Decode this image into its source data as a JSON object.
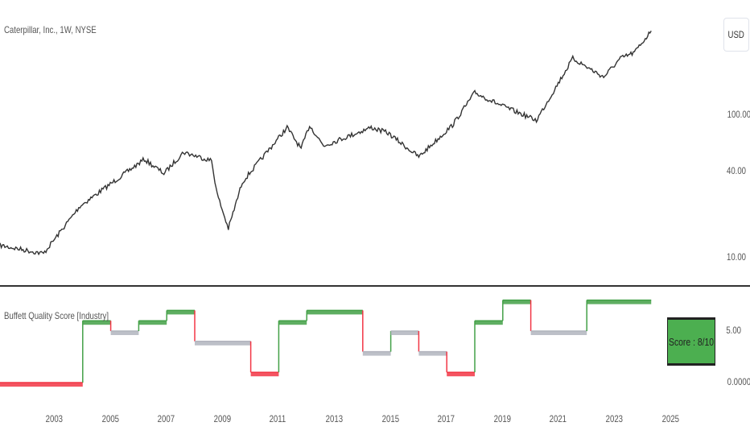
{
  "header": {
    "symbol_title": "Caterpillar, Inc., 1W, NYSE",
    "currency_button": "USD"
  },
  "indicator": {
    "title": "Buffett Quality Score [Industry]",
    "score_label": "Score :  8/10"
  },
  "colors": {
    "price": "#333333",
    "good": "#43a047",
    "neutral": "#b2b5be",
    "bad": "#f23645",
    "box": "#4caf50"
  },
  "chart_data": [
    {
      "type": "line",
      "title": "Caterpillar, Inc., 1W, NYSE",
      "yscale": "log",
      "ylabel": "USD",
      "yticks": [
        {
          "v": 10,
          "label": "10.00"
        },
        {
          "v": 40,
          "label": "40.00"
        },
        {
          "v": 100,
          "label": "100.00"
        }
      ],
      "xlim": [
        2001,
        2025.5
      ],
      "points": [
        [
          2001.05,
          12.2
        ],
        [
          2002.6,
          10.7
        ],
        [
          2003.9,
          23
        ],
        [
          2006.2,
          49
        ],
        [
          2006.9,
          39
        ],
        [
          2007.6,
          55
        ],
        [
          2008.6,
          48
        ],
        [
          2008.8,
          28
        ],
        [
          2009.2,
          16
        ],
        [
          2009.7,
          34
        ],
        [
          2011.3,
          82
        ],
        [
          2011.8,
          58
        ],
        [
          2012.1,
          85
        ],
        [
          2012.6,
          61
        ],
        [
          2014.3,
          82
        ],
        [
          2014.9,
          75
        ],
        [
          2016.0,
          51
        ],
        [
          2017.2,
          85
        ],
        [
          2018.0,
          144
        ],
        [
          2018.9,
          118
        ],
        [
          2020.2,
          92
        ],
        [
          2021.5,
          250
        ],
        [
          2022.6,
          185
        ],
        [
          2023.2,
          250
        ],
        [
          2023.7,
          275
        ],
        [
          2024.3,
          390
        ]
      ]
    },
    {
      "type": "line",
      "title": "Buffett Quality Score [Industry]",
      "ylim": [
        0,
        10
      ],
      "yticks": [
        {
          "v": 0,
          "label": "0.0000"
        },
        {
          "v": 5,
          "label": "5.00"
        }
      ],
      "steps": [
        [
          2001,
          2004,
          0
        ],
        [
          2004,
          2005,
          6
        ],
        [
          2005,
          2006,
          5
        ],
        [
          2006,
          2007,
          6
        ],
        [
          2007,
          2008,
          7
        ],
        [
          2008,
          2010,
          4
        ],
        [
          2010,
          2011,
          1
        ],
        [
          2011,
          2012,
          6
        ],
        [
          2012,
          2014,
          7
        ],
        [
          2014,
          2015,
          3
        ],
        [
          2015,
          2016,
          5
        ],
        [
          2016,
          2017,
          3
        ],
        [
          2017,
          2018,
          1
        ],
        [
          2018,
          2019,
          6
        ],
        [
          2019,
          2020,
          8
        ],
        [
          2020,
          2022,
          5
        ],
        [
          2022,
          2024.3,
          8
        ]
      ],
      "xticks": [
        "2003",
        "2005",
        "2007",
        "2009",
        "2011",
        "2013",
        "2015",
        "2017",
        "2019",
        "2021",
        "2023",
        "2025"
      ]
    }
  ]
}
